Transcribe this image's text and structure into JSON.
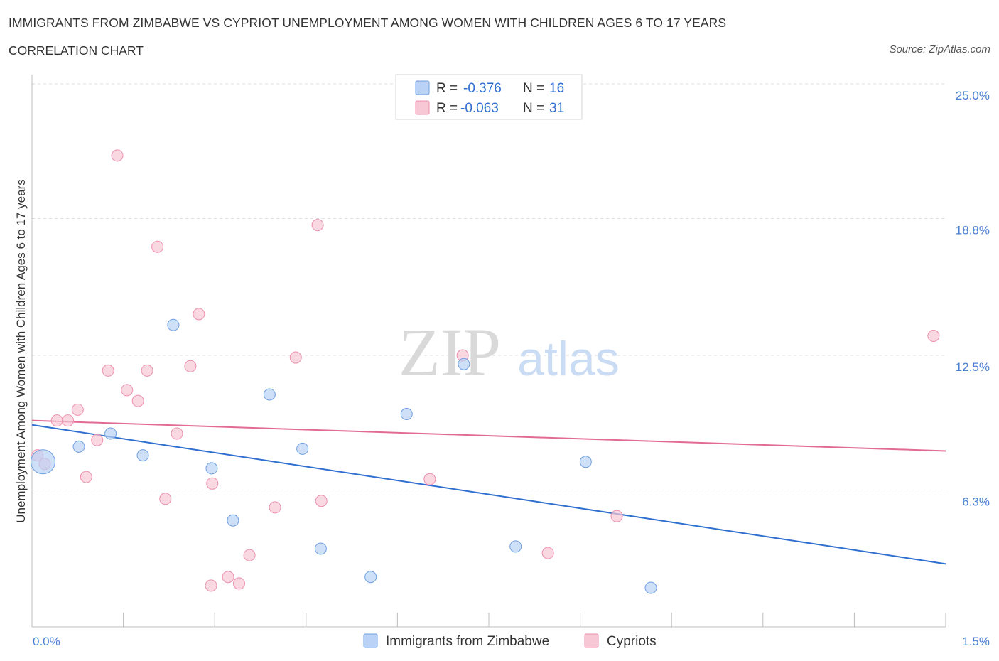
{
  "title": "IMMIGRANTS FROM ZIMBABWE VS CYPRIOT UNEMPLOYMENT AMONG WOMEN WITH CHILDREN AGES 6 TO 17 YEARS",
  "subtitle": "CORRELATION CHART",
  "source": "Source: ZipAtlas.com",
  "watermark": {
    "zip": "ZIP",
    "atlas": "atlas"
  },
  "colors": {
    "blue_fill": "#b9d2f5",
    "blue_stroke": "#6f9fe0",
    "blue_line": "#2f6fd0",
    "pink_fill": "#f8c7d6",
    "pink_stroke": "#ec8fae",
    "pink_line": "#e26b96",
    "tick_label": "#4a7fd4",
    "grid": "#dddddd"
  },
  "stats_legend": [
    {
      "r_label": "R =",
      "r_value": "-0.376",
      "n_label": "N =",
      "n_value": "16",
      "series": "blue"
    },
    {
      "r_label": "R =",
      "r_value": "-0.063",
      "n_label": "N =",
      "n_value": "31",
      "series": "pink"
    }
  ],
  "chart_data": {
    "type": "scatter",
    "title": "IMMIGRANTS FROM ZIMBABWE VS CYPRIOT UNEMPLOYMENT AMONG WOMEN WITH CHILDREN AGES 6 TO 17 YEARS",
    "xlabel": "",
    "ylabel": "Unemployment Among Women with Children Ages 6 to 17 years",
    "xlim": [
      0,
      1.5
    ],
    "ylim": [
      0,
      25
    ],
    "x_tick_labels": [
      "0.0%",
      "1.5%"
    ],
    "y_ticks": [
      6.3,
      12.5,
      18.8,
      25.0
    ],
    "y_tick_labels": [
      "6.3%",
      "12.5%",
      "18.8%",
      "25.0%"
    ],
    "grid": true,
    "legend": "bottom-center",
    "series": [
      {
        "name": "Immigrants from Zimbabwe",
        "color": "#6f9fe0",
        "points": [
          {
            "x": 0.018,
            "y": 7.6,
            "large": true
          },
          {
            "x": 0.077,
            "y": 8.3
          },
          {
            "x": 0.129,
            "y": 8.9
          },
          {
            "x": 0.182,
            "y": 7.9
          },
          {
            "x": 0.232,
            "y": 13.9
          },
          {
            "x": 0.295,
            "y": 7.3
          },
          {
            "x": 0.33,
            "y": 4.9
          },
          {
            "x": 0.39,
            "y": 10.7
          },
          {
            "x": 0.444,
            "y": 8.2
          },
          {
            "x": 0.474,
            "y": 3.6
          },
          {
            "x": 0.556,
            "y": 2.3
          },
          {
            "x": 0.615,
            "y": 9.8
          },
          {
            "x": 0.709,
            "y": 12.1
          },
          {
            "x": 0.794,
            "y": 3.7
          },
          {
            "x": 0.909,
            "y": 7.6
          },
          {
            "x": 1.016,
            "y": 1.8
          }
        ],
        "trend": {
          "x0": 0.0,
          "y0": 9.3,
          "x1": 1.5,
          "y1": 2.9
        }
      },
      {
        "name": "Cypriots",
        "color": "#ec8fae",
        "points": [
          {
            "x": 0.009,
            "y": 7.9
          },
          {
            "x": 0.021,
            "y": 7.5
          },
          {
            "x": 0.041,
            "y": 9.5
          },
          {
            "x": 0.059,
            "y": 9.5
          },
          {
            "x": 0.075,
            "y": 10.0
          },
          {
            "x": 0.089,
            "y": 6.9
          },
          {
            "x": 0.107,
            "y": 8.6
          },
          {
            "x": 0.125,
            "y": 11.8
          },
          {
            "x": 0.14,
            "y": 21.7
          },
          {
            "x": 0.156,
            "y": 10.9
          },
          {
            "x": 0.174,
            "y": 10.4
          },
          {
            "x": 0.189,
            "y": 11.8
          },
          {
            "x": 0.206,
            "y": 17.5
          },
          {
            "x": 0.219,
            "y": 5.9
          },
          {
            "x": 0.238,
            "y": 8.9
          },
          {
            "x": 0.26,
            "y": 12.0
          },
          {
            "x": 0.274,
            "y": 14.4
          },
          {
            "x": 0.294,
            "y": 1.9
          },
          {
            "x": 0.296,
            "y": 6.6
          },
          {
            "x": 0.322,
            "y": 2.3
          },
          {
            "x": 0.34,
            "y": 2.0
          },
          {
            "x": 0.357,
            "y": 3.3
          },
          {
            "x": 0.399,
            "y": 5.5
          },
          {
            "x": 0.433,
            "y": 12.4
          },
          {
            "x": 0.469,
            "y": 18.5
          },
          {
            "x": 0.475,
            "y": 5.8
          },
          {
            "x": 0.653,
            "y": 6.8
          },
          {
            "x": 0.707,
            "y": 12.5
          },
          {
            "x": 0.847,
            "y": 3.4
          },
          {
            "x": 0.96,
            "y": 5.1
          },
          {
            "x": 1.48,
            "y": 13.4
          }
        ],
        "trend": {
          "x0": 0.0,
          "y0": 9.5,
          "x1": 1.5,
          "y1": 8.1
        }
      }
    ]
  }
}
